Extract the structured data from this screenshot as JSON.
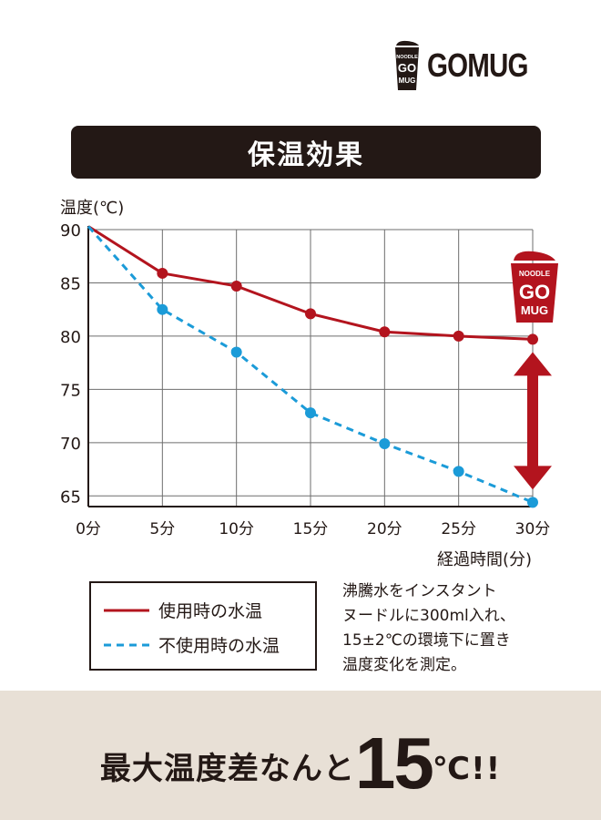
{
  "brand": {
    "name": "GOMUG",
    "icon": "noodle-cup-icon",
    "cup_text": [
      "NOODLE",
      "GO",
      "MUG"
    ]
  },
  "title": "保温効果",
  "chart_data": {
    "type": "line",
    "ylabel": "温度(℃)",
    "xlabel": "経過時間(分)",
    "categories": [
      "0分",
      "5分",
      "10分",
      "15分",
      "20分",
      "25分",
      "30分"
    ],
    "x": [
      0,
      5,
      10,
      15,
      20,
      25,
      30
    ],
    "yticks": [
      "90",
      "85",
      "80",
      "75",
      "70",
      "65"
    ],
    "ylim": [
      64,
      90
    ],
    "grid": true,
    "series": [
      {
        "name": "使用時の水温",
        "values": [
          90.3,
          85.9,
          84.7,
          82.1,
          80.4,
          80.0,
          79.7
        ],
        "color": "#b3141e",
        "style": "solid"
      },
      {
        "name": "不使用時の水温",
        "values": [
          90.3,
          82.5,
          78.5,
          72.8,
          69.9,
          67.3,
          64.4
        ],
        "color": "#1b9bd8",
        "style": "dashed"
      }
    ],
    "annotation": {
      "type": "double-arrow",
      "from": 79.7,
      "to": 64.4,
      "at_x": 30,
      "color": "#b3141e",
      "icon": "noodle-cup-icon"
    }
  },
  "legend": {
    "items": [
      "使用時の水温",
      "不使用時の水温"
    ]
  },
  "note": {
    "lines": [
      "沸騰水をインスタント",
      "ヌードルに300ml入れ、",
      "15±2℃の環境下に置き",
      "温度変化を測定。"
    ]
  },
  "footer": {
    "prefix": "最大温度差なんと",
    "number": "15",
    "suffix": "℃!!"
  },
  "colors": {
    "dark": "#231815",
    "red": "#b3141e",
    "blue": "#1b9bd8",
    "footer_bg": "#e8e0d6"
  }
}
